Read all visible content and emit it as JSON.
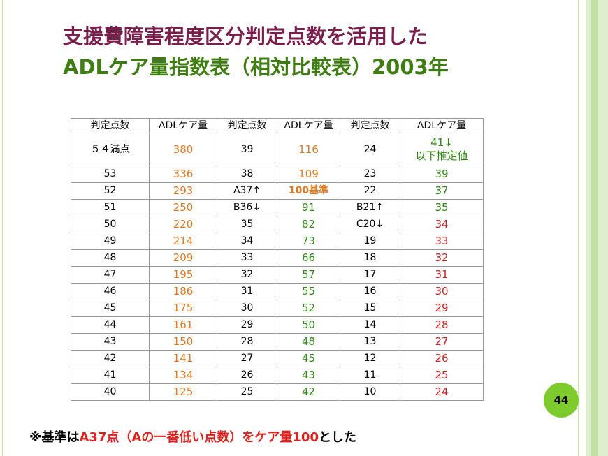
{
  "title": {
    "line1": "支援費障害程度区分判定点数を活用した",
    "line2": "ADLケア量指数表（相対比較表）2003年"
  },
  "table": {
    "headers": [
      "判定点数",
      "ADLケア量",
      "判定点数",
      "ADLケア量",
      "判定点数",
      "ADLケア量"
    ],
    "first_row": {
      "c0": "５４満点",
      "c1": "380",
      "c2": "39",
      "c3": "116",
      "c4": "24",
      "c5_line1": "41↓",
      "c5_line2": "以下推定値"
    },
    "rows": [
      [
        "53",
        "336",
        "38",
        "109",
        "23",
        "39"
      ],
      [
        "52",
        "293",
        "A37↑",
        "100基準",
        "22",
        "37"
      ],
      [
        "51",
        "250",
        "B36↓",
        "91",
        "B21↑",
        "35"
      ],
      [
        "50",
        "220",
        "35",
        "82",
        "C20↓",
        "34"
      ],
      [
        "49",
        "214",
        "34",
        "73",
        "19",
        "33"
      ],
      [
        "48",
        "209",
        "33",
        "66",
        "18",
        "32"
      ],
      [
        "47",
        "195",
        "32",
        "57",
        "17",
        "31"
      ],
      [
        "46",
        "186",
        "31",
        "55",
        "16",
        "30"
      ],
      [
        "45",
        "175",
        "30",
        "52",
        "15",
        "29"
      ],
      [
        "44",
        "161",
        "29",
        "50",
        "14",
        "28"
      ],
      [
        "43",
        "150",
        "28",
        "48",
        "13",
        "27"
      ],
      [
        "42",
        "141",
        "27",
        "45",
        "12",
        "26"
      ],
      [
        "41",
        "134",
        "26",
        "43",
        "11",
        "25"
      ],
      [
        "40",
        "125",
        "25",
        "42",
        "10",
        "24"
      ]
    ]
  },
  "page_number": "44",
  "note": {
    "part1": "※基準は",
    "part2": "A37点（Aの一番低い点数）をケア量100",
    "part3": "とした"
  },
  "colors": {
    "title_line1": "#7a1e4b",
    "title_line2": "#3e7d12",
    "care_orange": "#e07820",
    "care_green": "#2f8a14",
    "care_red": "#d11f1f",
    "badge": "#7dcb2c"
  }
}
